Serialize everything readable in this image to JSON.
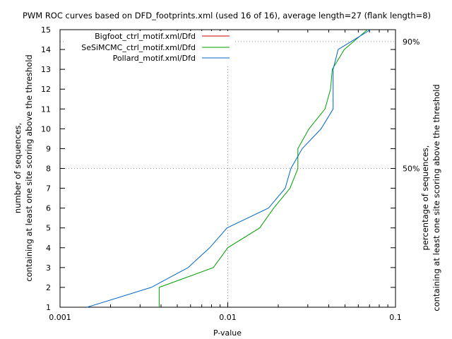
{
  "chart_data": {
    "type": "line",
    "title": "PWM ROC curves based on DFD_footprints.xml (used 16 of 16), average length=27 (flank length=8)",
    "xlabel": "P-value",
    "ylabel_left": [
      "number of sequences,",
      "containing at least one site scoring above the threshold"
    ],
    "ylabel_right": [
      "percentage of sequences,",
      "containing at least one site scoring above the threshold"
    ],
    "x_scale": "log",
    "xlim": [
      0.001,
      0.1
    ],
    "ylim": [
      1,
      15
    ],
    "x_ticks": [
      {
        "value": 0.001,
        "label": "0.001"
      },
      {
        "value": 0.01,
        "label": "0.01"
      },
      {
        "value": 0.1,
        "label": "0.1"
      }
    ],
    "y_ticks": [
      1,
      2,
      3,
      4,
      5,
      6,
      7,
      8,
      9,
      10,
      11,
      12,
      13,
      14,
      15
    ],
    "y2_ticks": [
      {
        "value": 8,
        "label": "50%"
      },
      {
        "value": 14.4,
        "label": "90%"
      }
    ],
    "grid": {
      "x": [
        0.01
      ],
      "y": [
        8,
        14.4
      ]
    },
    "legend_position": "top-left",
    "series": [
      {
        "name": "Bigfoot_ctrl_motif.xml/Dfd",
        "color": "#cc0000",
        "points": []
      },
      {
        "name": "SeSiMCMC_ctrl_motif.xml/Dfd",
        "color": "#00a000",
        "points": [
          [
            0.0039,
            1
          ],
          [
            0.0039,
            2
          ],
          [
            0.0082,
            3
          ],
          [
            0.01,
            4
          ],
          [
            0.0155,
            5
          ],
          [
            0.0188,
            6
          ],
          [
            0.0235,
            7
          ],
          [
            0.0262,
            8
          ],
          [
            0.0262,
            9
          ],
          [
            0.0305,
            10
          ],
          [
            0.038,
            11
          ],
          [
            0.041,
            12
          ],
          [
            0.042,
            13
          ],
          [
            0.0495,
            14
          ],
          [
            0.068,
            15
          ]
        ]
      },
      {
        "name": "Pollard_motif.xml/Dfd",
        "color": "#0066cc",
        "points": [
          [
            0.00145,
            1
          ],
          [
            0.0035,
            2
          ],
          [
            0.0058,
            3
          ],
          [
            0.0078,
            4
          ],
          [
            0.0099,
            5
          ],
          [
            0.0175,
            6
          ],
          [
            0.022,
            7
          ],
          [
            0.0238,
            8
          ],
          [
            0.0278,
            9
          ],
          [
            0.036,
            10
          ],
          [
            0.0425,
            11
          ],
          [
            0.0425,
            12
          ],
          [
            0.0425,
            13
          ],
          [
            0.0455,
            14
          ],
          [
            0.071,
            15
          ]
        ]
      }
    ]
  }
}
